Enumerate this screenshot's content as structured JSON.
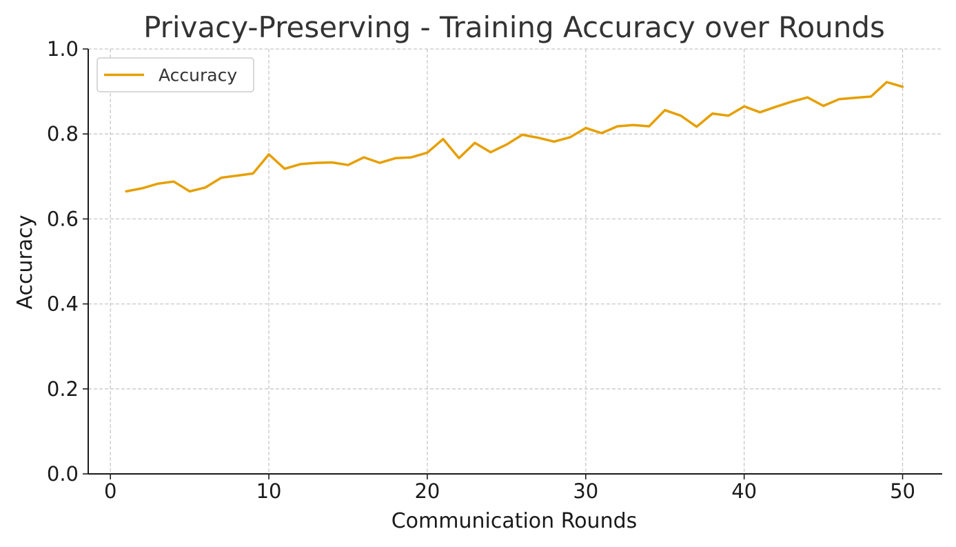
{
  "chart_data": {
    "type": "line",
    "title": "Privacy-Preserving - Training Accuracy over Rounds",
    "xlabel": "Communication Rounds",
    "ylabel": "Accuracy",
    "xlim": [
      -1.4,
      52.5
    ],
    "ylim": [
      0.0,
      1.0
    ],
    "x_ticks": [
      0,
      10,
      20,
      30,
      40,
      50
    ],
    "y_ticks": [
      0.0,
      0.2,
      0.4,
      0.6,
      0.8,
      1.0
    ],
    "x_tick_labels": [
      "0",
      "10",
      "20",
      "30",
      "40",
      "50"
    ],
    "y_tick_labels": [
      "0.0",
      "0.2",
      "0.4",
      "0.6",
      "0.8",
      "1.0"
    ],
    "grid": true,
    "legend_position": "top-left",
    "series": [
      {
        "name": "Accuracy",
        "color": "#E69F00",
        "x": [
          1,
          2,
          3,
          4,
          5,
          6,
          7,
          8,
          9,
          10,
          11,
          12,
          13,
          14,
          15,
          16,
          17,
          18,
          19,
          20,
          21,
          22,
          23,
          24,
          25,
          26,
          27,
          28,
          29,
          30,
          31,
          32,
          33,
          34,
          35,
          36,
          37,
          38,
          39,
          40,
          41,
          42,
          43,
          44,
          45,
          46,
          47,
          48,
          49,
          50
        ],
        "values": [
          0.665,
          0.672,
          0.683,
          0.688,
          0.665,
          0.674,
          0.697,
          0.702,
          0.707,
          0.752,
          0.718,
          0.729,
          0.732,
          0.733,
          0.727,
          0.745,
          0.732,
          0.743,
          0.745,
          0.756,
          0.788,
          0.743,
          0.779,
          0.757,
          0.775,
          0.798,
          0.791,
          0.782,
          0.792,
          0.814,
          0.802,
          0.818,
          0.821,
          0.818,
          0.856,
          0.843,
          0.817,
          0.848,
          0.843,
          0.865,
          0.851,
          0.864,
          0.876,
          0.886,
          0.866,
          0.882,
          0.885,
          0.888,
          0.922,
          0.911
        ]
      }
    ]
  }
}
